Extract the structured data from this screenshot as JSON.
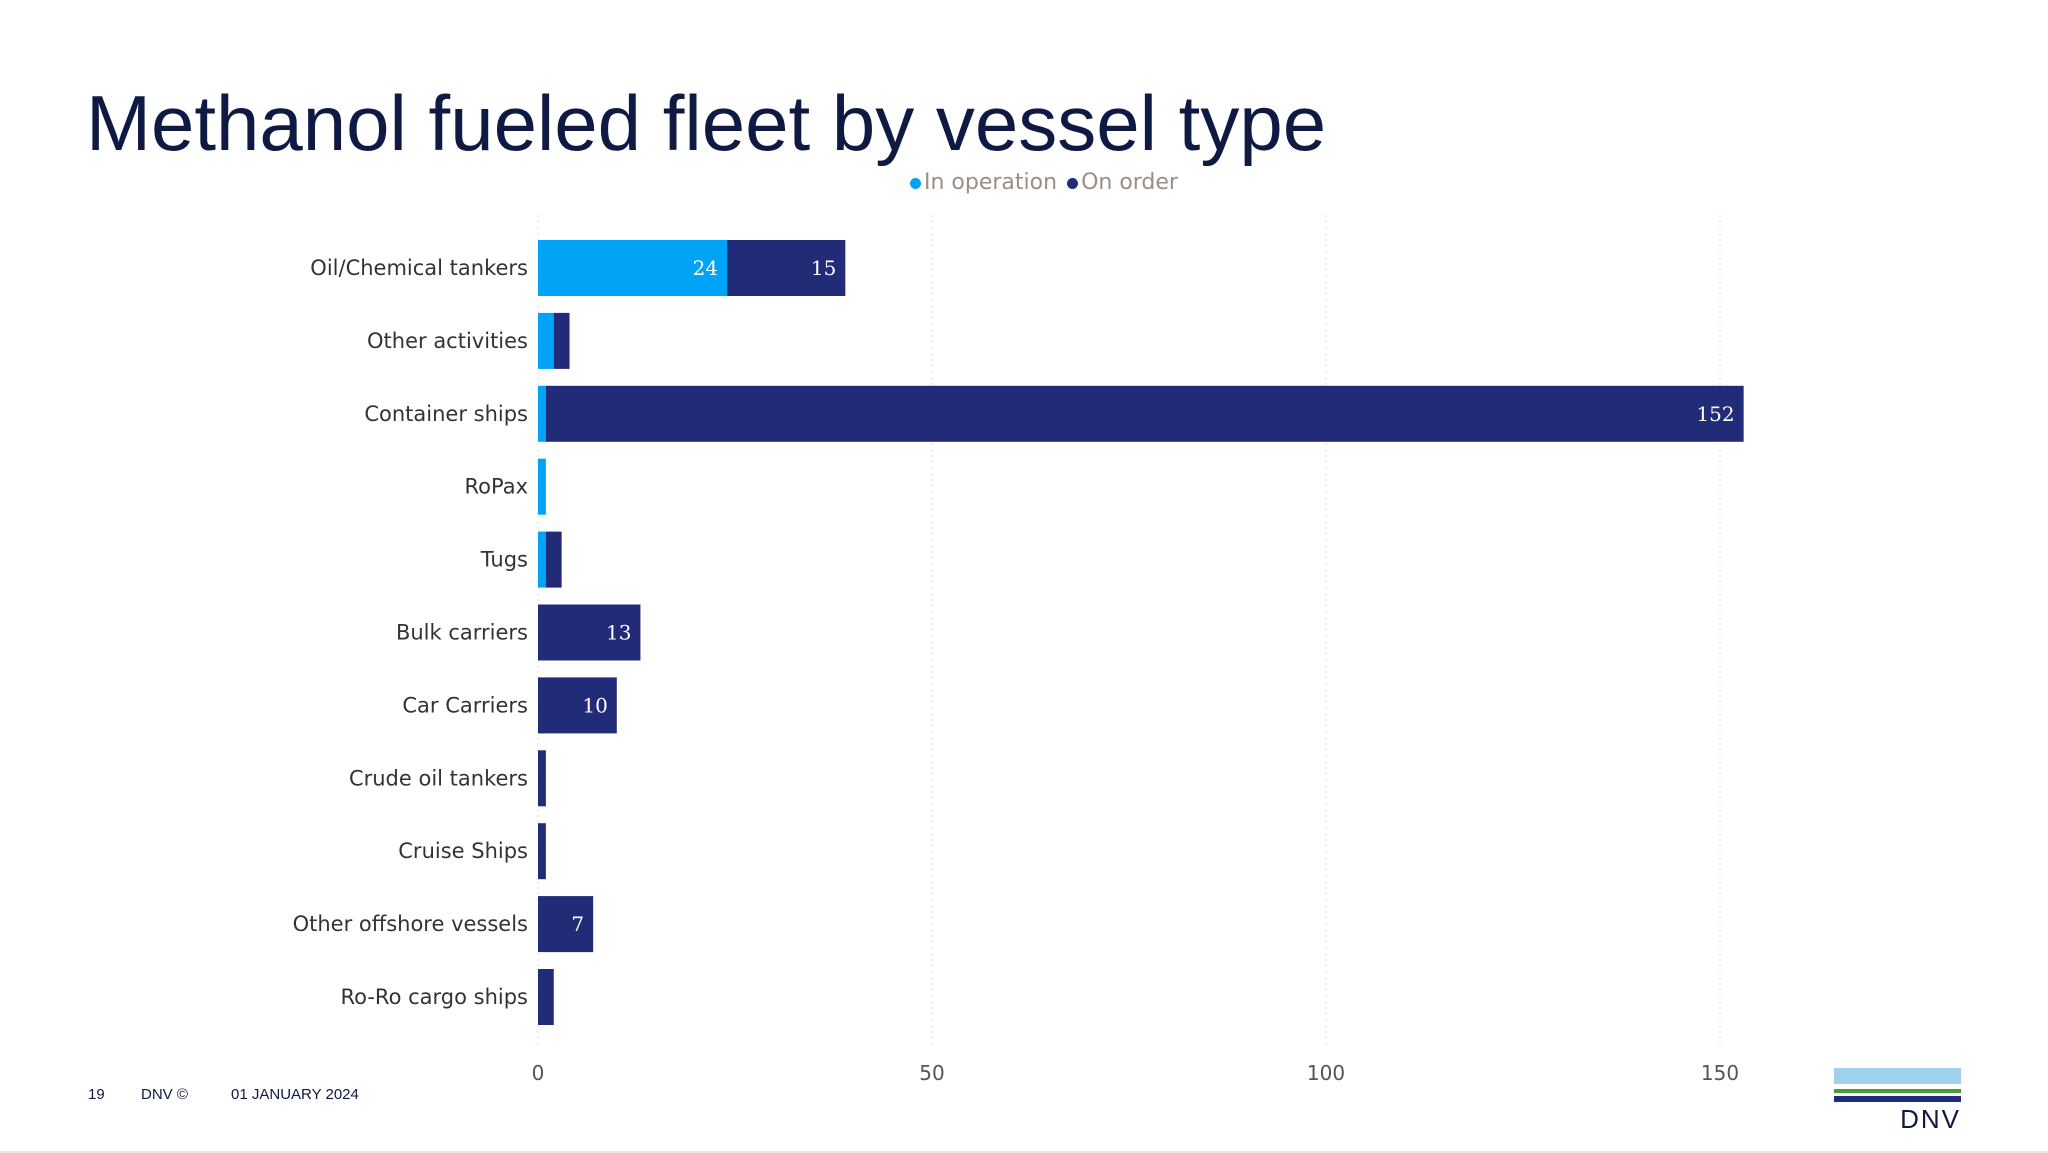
{
  "title": "Methanol fueled fleet by vessel type",
  "footer": {
    "page": "19",
    "copyright": "DNV ©",
    "date": "01 JANUARY 2024"
  },
  "logo": {
    "text": "DNV"
  },
  "chart_data": {
    "type": "bar",
    "orientation": "horizontal",
    "stacked": true,
    "categories": [
      "Oil/Chemical tankers",
      "Other activities",
      "Container ships",
      "RoPax",
      "Tugs",
      "Bulk carriers",
      "Car Carriers",
      "Crude oil tankers",
      "Cruise Ships",
      "Other offshore vessels",
      "Ro-Ro cargo ships"
    ],
    "series": [
      {
        "name": "In operation",
        "color": "#00a3f5",
        "values": [
          24,
          2,
          1,
          1,
          1,
          0,
          0,
          0,
          0,
          0,
          0
        ]
      },
      {
        "name": "On order",
        "color": "#222b78",
        "values": [
          15,
          2,
          152,
          0,
          2,
          13,
          10,
          1,
          1,
          7,
          2
        ]
      }
    ],
    "data_labels": [
      [
        "24",
        null,
        null,
        null,
        null,
        null,
        null,
        null,
        null,
        null,
        null
      ],
      [
        "15",
        null,
        "152",
        null,
        null,
        "13",
        "10",
        null,
        null,
        "7",
        null
      ]
    ],
    "xlim": [
      0,
      155
    ],
    "xticks": [
      0,
      50,
      100,
      150
    ],
    "grid": "vertical dotted",
    "legend": "top-center"
  }
}
